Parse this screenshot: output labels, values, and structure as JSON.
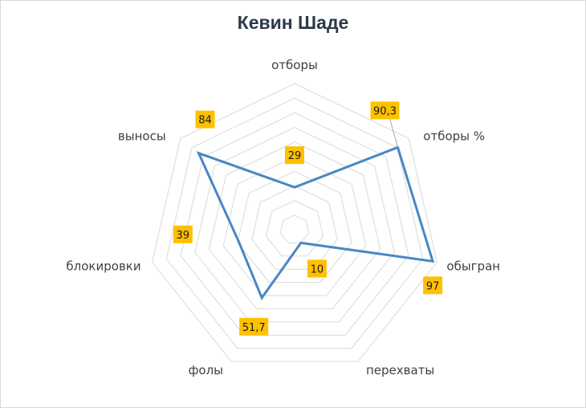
{
  "chart_data": {
    "type": "radar",
    "title": "Кевин Шаде",
    "categories": [
      "отборы",
      "отборы %",
      "обыгран",
      "перехваты",
      "фолы",
      "блокировки",
      "выносы"
    ],
    "series": [
      {
        "values": [
          29,
          90.3,
          97,
          10,
          51.7,
          39,
          84
        ]
      }
    ],
    "data_labels": [
      "29",
      "90,3",
      "97",
      "10",
      "51,7",
      "39",
      "84"
    ],
    "rlim": [
      0,
      100
    ],
    "grid": true,
    "legend": "none",
    "colors": {
      "line": "#4a86c5",
      "grid": "#d9d9d9",
      "label_box": "#ffc000"
    }
  }
}
